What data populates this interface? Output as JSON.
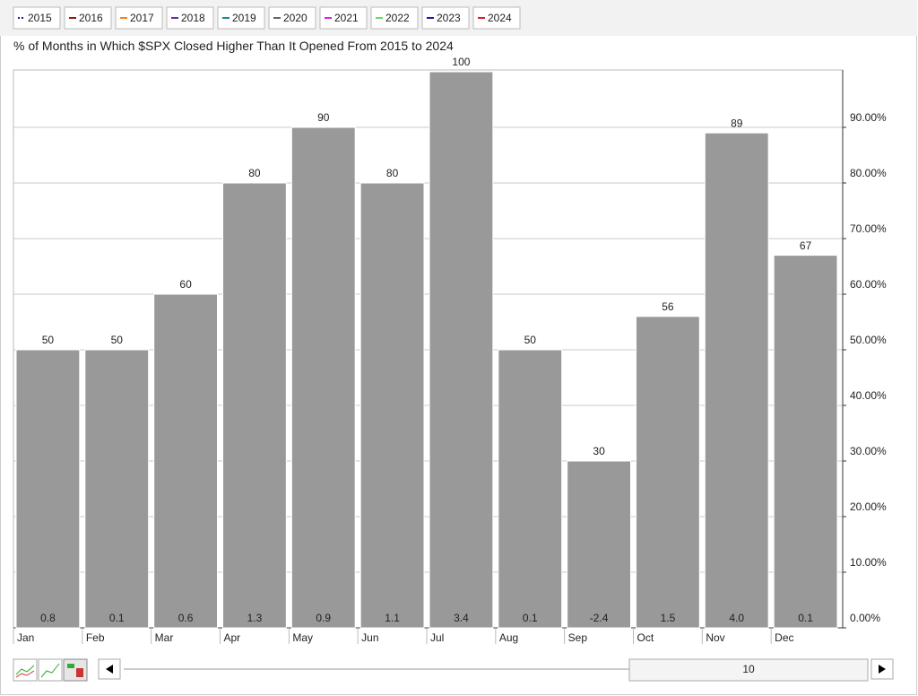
{
  "chart_data": {
    "type": "bar",
    "title": "% of Months in Which $SPX Closed Higher Than It Opened From 2015 to 2024",
    "legend_years": [
      {
        "name": "2015",
        "color": "#1a1a8c"
      },
      {
        "name": "2016",
        "color": "#8b1a1a"
      },
      {
        "name": "2017",
        "color": "#ff7f27"
      },
      {
        "name": "2018",
        "color": "#6a2ca8"
      },
      {
        "name": "2019",
        "color": "#1a8c8c"
      },
      {
        "name": "2020",
        "color": "#666666"
      },
      {
        "name": "2021",
        "color": "#e020e0"
      },
      {
        "name": "2022",
        "color": "#66dd66"
      },
      {
        "name": "2023",
        "color": "#1a1aa8"
      },
      {
        "name": "2024",
        "color": "#e02020"
      }
    ],
    "categories": [
      "Jan",
      "Feb",
      "Mar",
      "Apr",
      "May",
      "Jun",
      "Jul",
      "Aug",
      "Sep",
      "Oct",
      "Nov",
      "Dec"
    ],
    "values": [
      50,
      50,
      60,
      80,
      90,
      80,
      100,
      50,
      30,
      56,
      89,
      67
    ],
    "color": "#999999",
    "avg_change": [
      0.8,
      0.1,
      0.6,
      1.3,
      0.9,
      1.1,
      3.4,
      0.1,
      -2.4,
      1.5,
      4.0,
      0.1
    ],
    "avg_change_labels": [
      "0.8",
      "0.1",
      "0.6",
      "1.3",
      "0.9",
      "1.1",
      "3.4",
      "0.1",
      "-2.4",
      "1.5",
      "4.0",
      "0.1"
    ],
    "ylim": [
      0,
      100
    ],
    "yticks": [
      {
        "value": 0,
        "label": "0.00%"
      },
      {
        "value": 10,
        "label": "10.00%"
      },
      {
        "value": 20,
        "label": "20.00%"
      },
      {
        "value": 30,
        "label": "30.00%"
      },
      {
        "value": 40,
        "label": "40.00%"
      },
      {
        "value": 50,
        "label": "50.00%"
      },
      {
        "value": 60,
        "label": "60.00%"
      },
      {
        "value": 70,
        "label": "70.00%"
      },
      {
        "value": 80,
        "label": "80.00%"
      },
      {
        "value": 90,
        "label": "90.00%"
      }
    ],
    "grid": true,
    "period": "10"
  }
}
